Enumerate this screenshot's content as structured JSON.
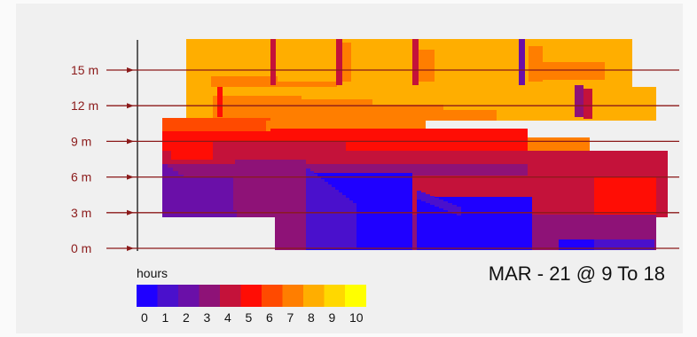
{
  "chart_data": {
    "type": "heatmap",
    "title": "MAR - 21 @ 9 To 18",
    "y_axis": {
      "unit": "m",
      "ticks": [
        0,
        3,
        6,
        9,
        12,
        15
      ],
      "tick_labels": [
        "0 m",
        "3 m",
        "6 m",
        "9 m",
        "12 m",
        "15 m"
      ]
    },
    "legend": {
      "title": "hours",
      "values": [
        0,
        1,
        2,
        3,
        4,
        5,
        6,
        7,
        8,
        9,
        10
      ],
      "colors": [
        "#1f00ff",
        "#4a10cc",
        "#6a0fa8",
        "#8e1277",
        "#c4123a",
        "#ff0d05",
        "#ff4a00",
        "#ff7e00",
        "#ffae00",
        "#ffd800",
        "#ffff00"
      ]
    }
  }
}
